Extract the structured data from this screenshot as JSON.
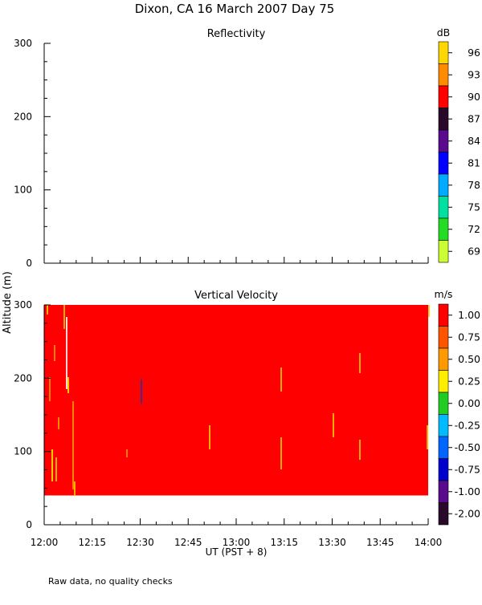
{
  "chart_data": {
    "title": "Dixon, CA 16 March 2007  Day  75",
    "ylabel": "Altitude (m)",
    "xlabel": "UT  (PST + 8)",
    "x_tick_labels": [
      "12:00",
      "12:15",
      "12:30",
      "12:45",
      "13:00",
      "13:15",
      "13:30",
      "13:45",
      "14:00"
    ],
    "xlim": [
      0,
      120
    ],
    "footnote": "Raw data, no quality checks",
    "panels": [
      {
        "title": "Reflectivity",
        "type": "heatmap",
        "unit": "dB",
        "ylim": [
          0,
          300
        ],
        "y_ticks": [
          0,
          100,
          200,
          300
        ],
        "colorbar_labels": [
          "96",
          "93",
          "90",
          "87",
          "84",
          "81",
          "78",
          "75",
          "72",
          "69"
        ],
        "colorbar_colors": [
          "#ffd700",
          "#ff8c00",
          "#ff0000",
          "#2a0a2a",
          "#5a0a8c",
          "#0000ff",
          "#00aaff",
          "#00e0a0",
          "#22dd22",
          "#ccff33"
        ],
        "data": []
      },
      {
        "title": "Vertical Velocity",
        "type": "heatmap",
        "unit": "m/s",
        "ylim": [
          0,
          300
        ],
        "y_ticks": [
          0,
          100,
          200,
          300
        ],
        "colorbar_labels": [
          "1.00",
          "0.75",
          "0.50",
          "0.25",
          "0.00",
          "-0.25",
          "-0.50",
          "-0.75",
          "-1.00",
          "-2.00"
        ],
        "colorbar_colors": [
          "#ff0000",
          "#ff5500",
          "#ff9900",
          "#ffee00",
          "#22cc22",
          "#00bbff",
          "#0066ff",
          "#0000cc",
          "#5a0a8c",
          "#2a0a2a"
        ],
        "field": {
          "x_range": [
            0,
            120
          ],
          "y_range": [
            40,
            300
          ],
          "dominant_value": ">1.00"
        }
      }
    ]
  }
}
